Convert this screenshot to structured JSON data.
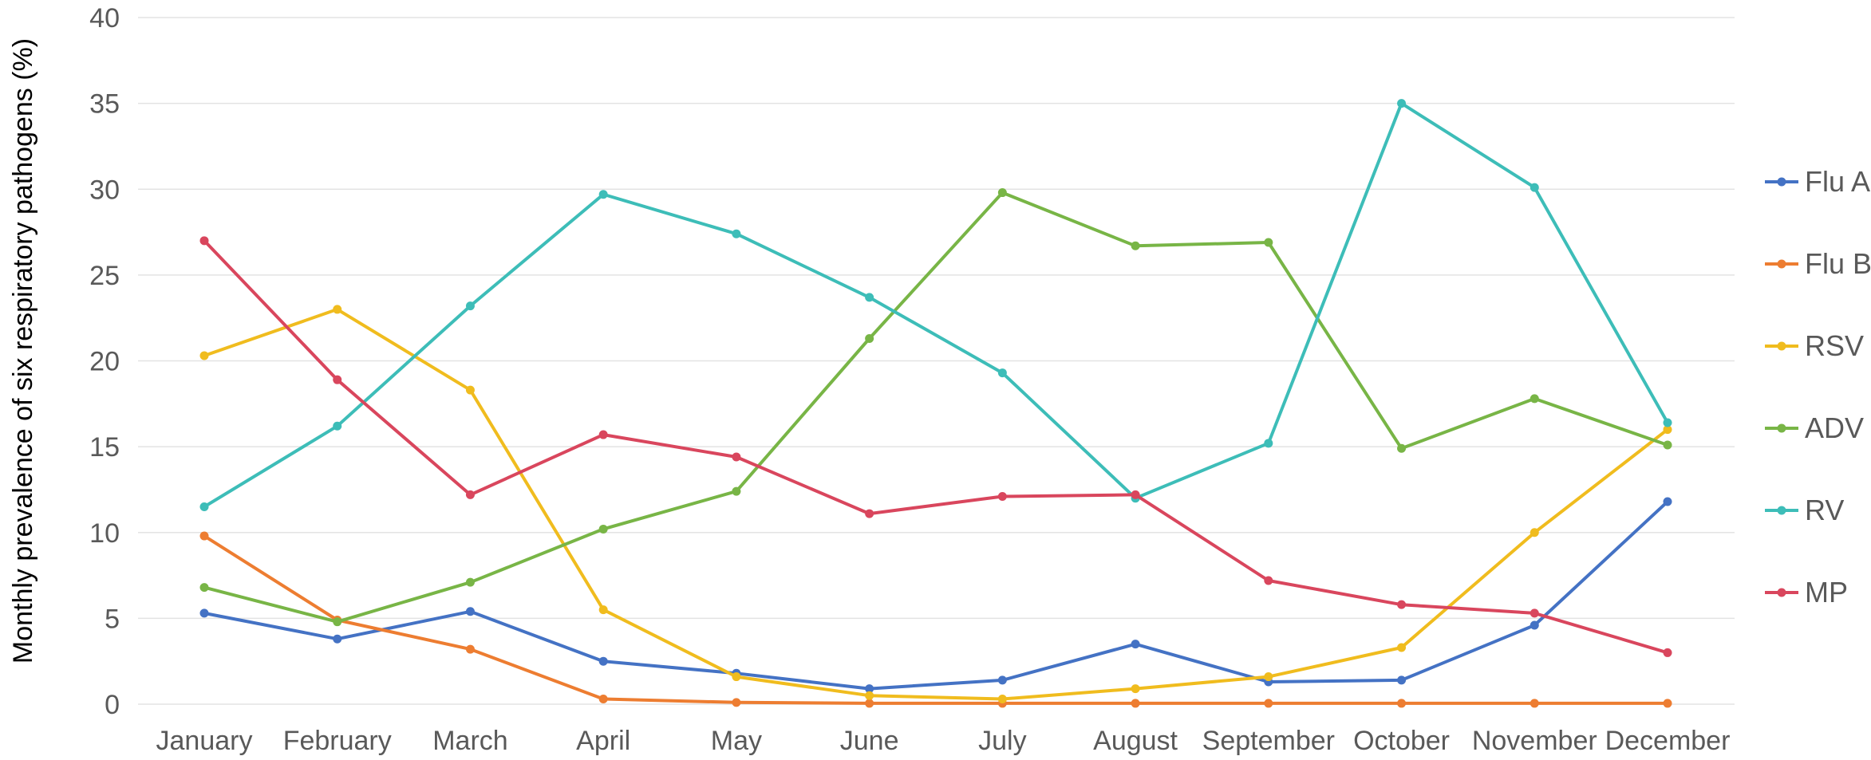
{
  "chart_data": {
    "type": "line",
    "title": "",
    "xlabel": "",
    "ylabel": "Monthly prevalence of six respiratory pathogens (%)",
    "ylim": [
      0,
      40
    ],
    "y_ticks": [
      "0",
      "5",
      "10",
      "15",
      "20",
      "25",
      "30",
      "35",
      "40"
    ],
    "grid": true,
    "legend_position": "right",
    "categories": [
      "January",
      "February",
      "March",
      "April",
      "May",
      "June",
      "July",
      "August",
      "September",
      "October",
      "November",
      "December"
    ],
    "series": [
      {
        "name": "Flu A",
        "color": "#4472c4",
        "values": [
          5.3,
          3.8,
          5.4,
          2.5,
          1.8,
          0.9,
          1.4,
          3.5,
          1.3,
          1.4,
          4.6,
          11.8
        ]
      },
      {
        "name": "Flu B",
        "color": "#ed7d31",
        "values": [
          9.8,
          4.9,
          3.2,
          0.3,
          0.1,
          0.05,
          0.05,
          0.05,
          0.05,
          0.05,
          0.05,
          0.05
        ]
      },
      {
        "name": "RSV",
        "color": "#f0bc1e",
        "values": [
          20.3,
          23.0,
          18.3,
          5.5,
          1.6,
          0.5,
          0.3,
          0.9,
          1.6,
          3.3,
          10.0,
          16.0
        ]
      },
      {
        "name": "ADV",
        "color": "#78b546",
        "values": [
          6.8,
          4.8,
          7.1,
          10.2,
          12.4,
          21.3,
          29.8,
          26.7,
          26.9,
          14.9,
          17.8,
          15.1
        ]
      },
      {
        "name": "RV",
        "color": "#3dbdb8",
        "values": [
          11.5,
          16.2,
          23.2,
          29.7,
          27.4,
          23.7,
          19.3,
          12.0,
          15.2,
          35.0,
          30.1,
          16.4
        ]
      },
      {
        "name": "MP",
        "color": "#d9465d",
        "values": [
          27.0,
          18.9,
          12.2,
          15.7,
          14.4,
          11.1,
          12.1,
          12.2,
          7.2,
          5.8,
          5.3,
          3.0
        ]
      }
    ]
  }
}
